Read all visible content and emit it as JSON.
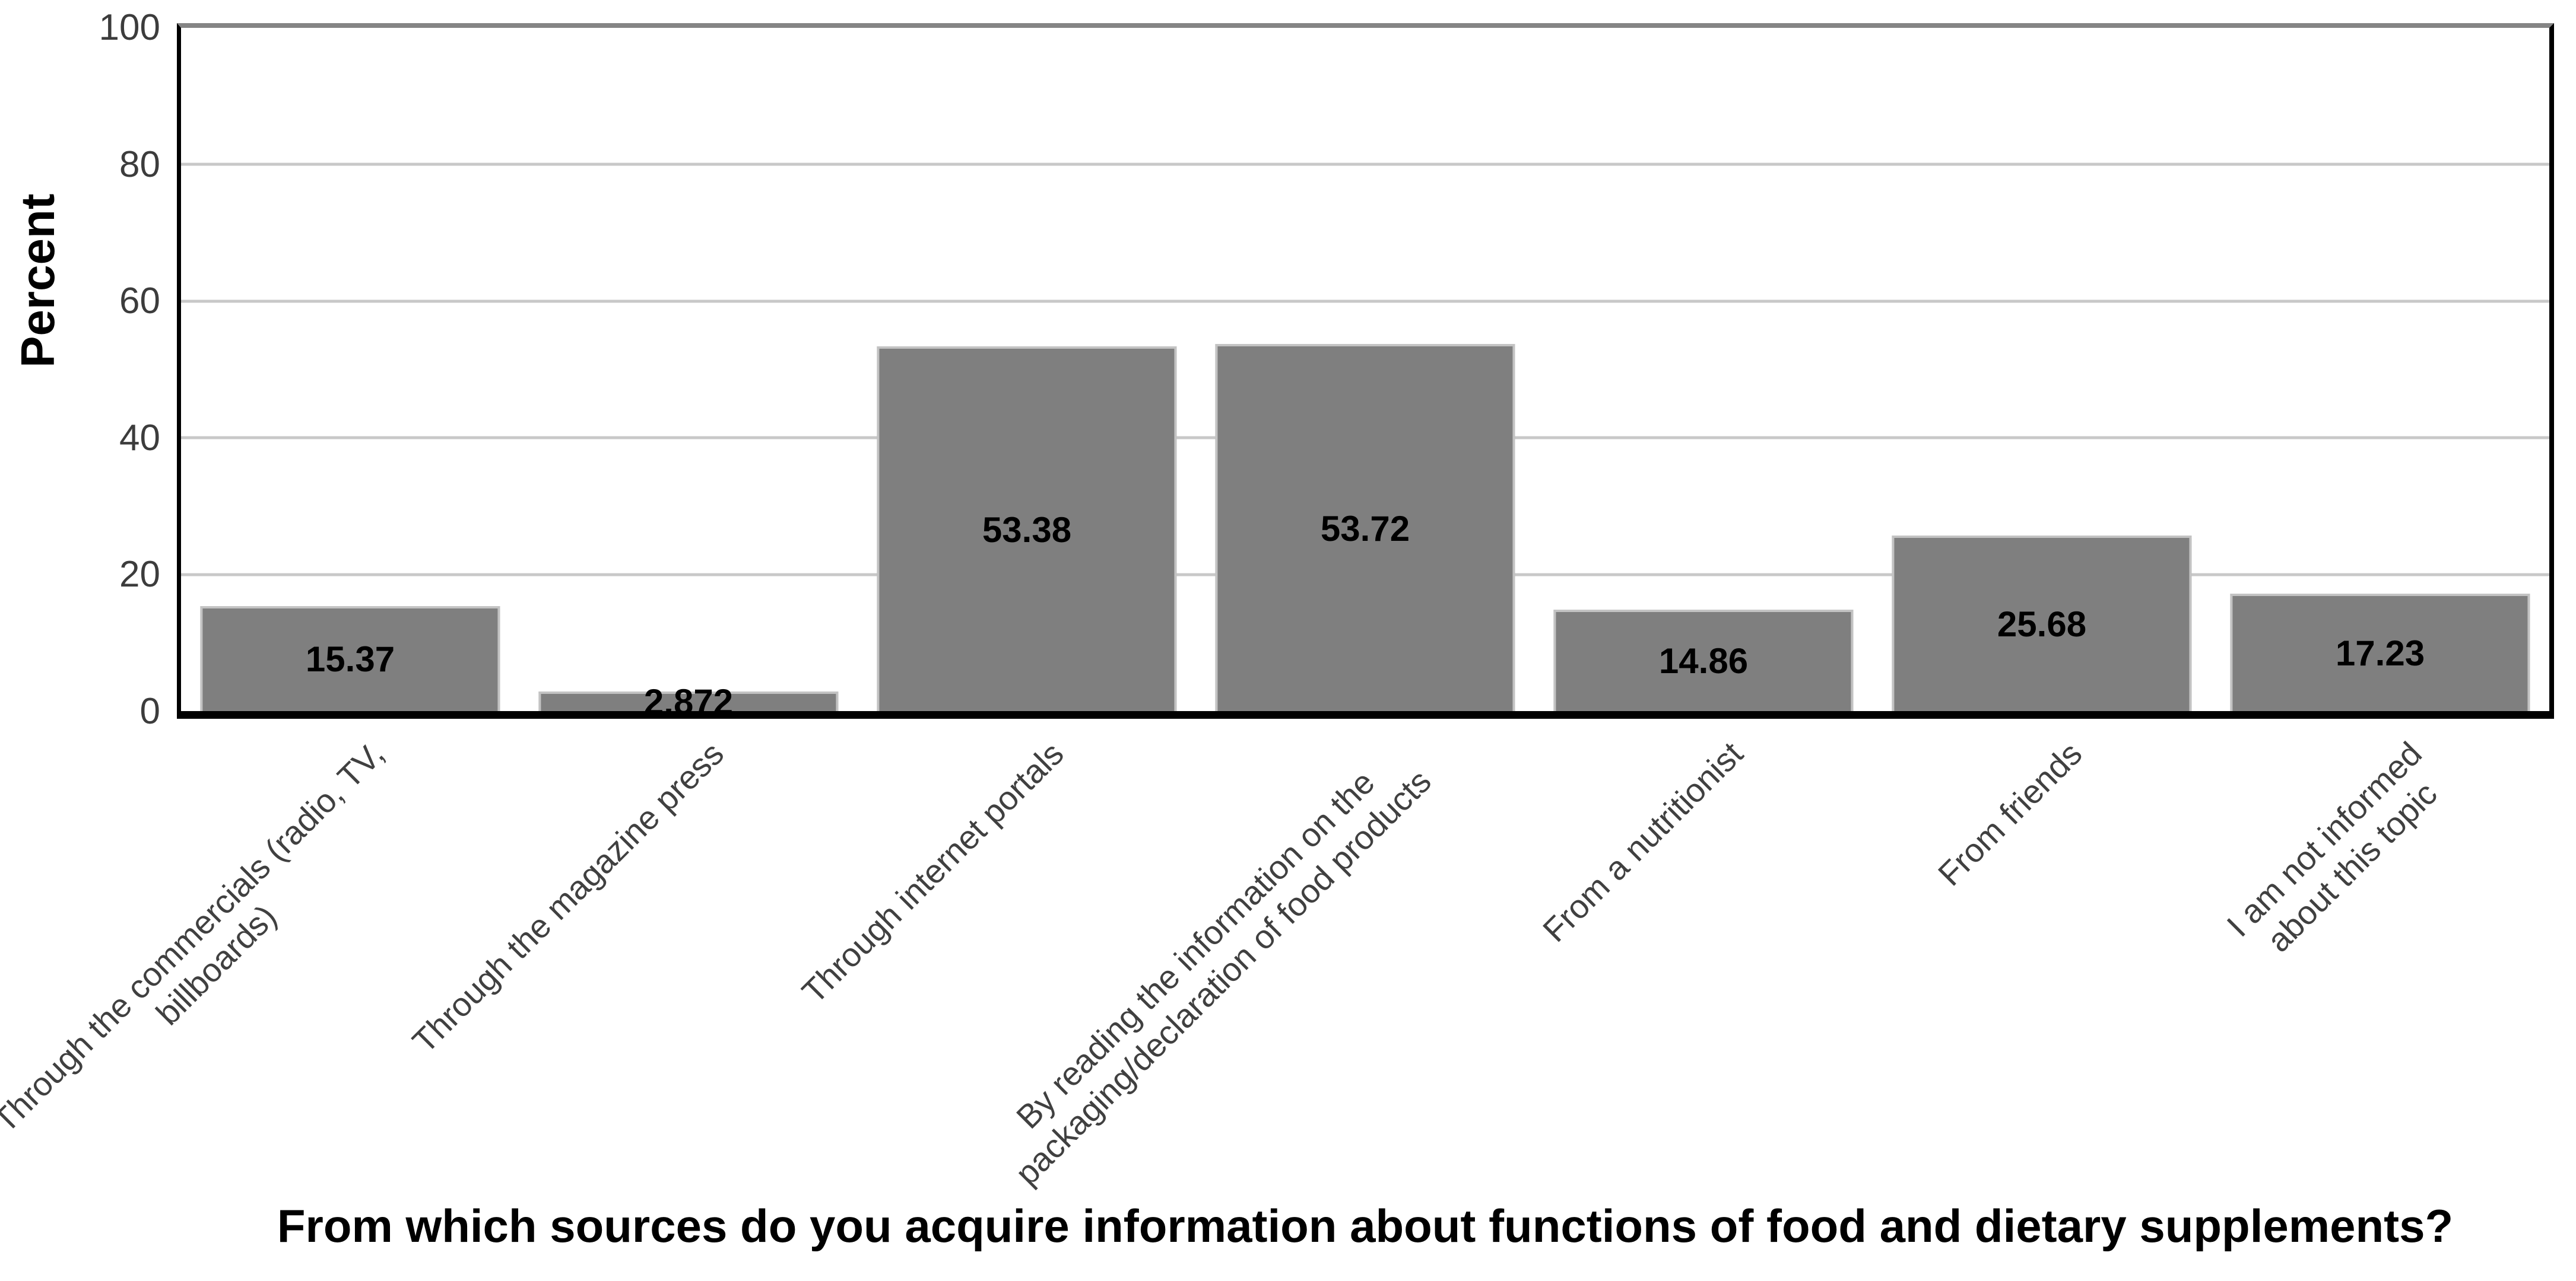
{
  "chart_data": {
    "type": "bar",
    "title": "From which sources do you acquire information about functions of food and dietary supplements?",
    "xlabel": "",
    "ylabel": "Percent",
    "ylim": [
      0,
      100
    ],
    "yticks": [
      0,
      20,
      40,
      60,
      80,
      100
    ],
    "grid": true,
    "legend": "none",
    "categories": [
      "Through the commercials (radio, TV,\nbillboards)",
      "Through the magazine press",
      "Through internet portals",
      "By reading the information on the\npackaging/declaration of food products",
      "From a nutritionist",
      "From friends",
      "I am not informed\nabout this topic"
    ],
    "values": [
      15.37,
      2.872,
      53.38,
      53.72,
      14.86,
      25.68,
      17.23
    ],
    "value_labels": [
      "15.37",
      "2.872",
      "53.38",
      "53.72",
      "14.86",
      "25.68",
      "17.23"
    ],
    "colors": {
      "bar_fill": "#7f7f7f",
      "bar_border": "#c3c3c3",
      "gridline": "#c8c8c8",
      "frame_top": "#858585",
      "axis": "#000000",
      "tick_text": "#3c3c3c",
      "category_text": "#404040"
    }
  }
}
